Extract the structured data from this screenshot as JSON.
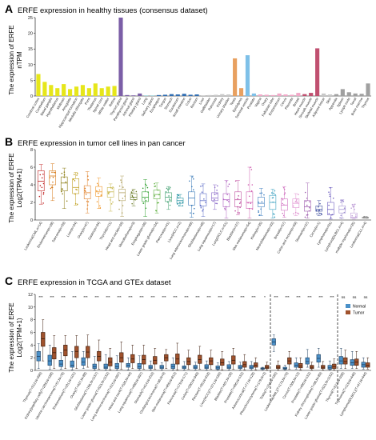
{
  "panels": {
    "A": {
      "label": "A",
      "title": "ERFE expression in healthy tissues (consensus dataset)",
      "ylabel_1": "The expression of ERFE",
      "ylabel_2": "nTPM"
    },
    "B": {
      "label": "B",
      "title": "ERFE expression in tumor cell lines in pan cancer",
      "ylabel_1": "The expression of ERFE",
      "ylabel_2": "Log2(TPM+1)"
    },
    "C": {
      "label": "C",
      "title": "ERFE expression in TCGA and GTEx dataset",
      "ylabel_1": "The expression of ERFE",
      "ylabel_2": "Log2(TPM+1)"
    }
  },
  "chart_data": [
    {
      "type": "bar",
      "title": "ERFE expression in healthy tissues (consensus dataset)",
      "ylabel": "The expression of ERFE nTPM",
      "ylim": [
        0,
        25
      ],
      "yticks": [
        0,
        5,
        10,
        15,
        20,
        25
      ],
      "categories": [
        "Cerebral cortex",
        "Cerebellum",
        "Basal ganglia",
        "Hypothalamus",
        "Midbrain",
        "Amygdala",
        "Hippocampal formation",
        "Medulla oblongata",
        "Pons",
        "Thalamus",
        "Spinal cord",
        "White matter",
        "Retina",
        "Thyroid gland",
        "Parathyroid gland",
        "Adrenal gland",
        "Pituitary gland",
        "Lung",
        "Salivary gland",
        "Esophagus",
        "Tongue",
        "Stomach",
        "Duodenum",
        "Small intestine",
        "Colon",
        "Rectum",
        "Liver",
        "Gallbladder",
        "Pancreas",
        "Kidney",
        "Urinary bladder",
        "Testis",
        "Epididymis",
        "Seminal vesicle",
        "Prostate",
        "Vagina",
        "Ovary",
        "Fallopian tube",
        "Endometrium",
        "Cervix",
        "Placenta",
        "Breast",
        "Heart muscle",
        "Smooth muscle",
        "Skeletal muscle",
        "Adipose tissue",
        "Skin",
        "Appendix",
        "Spleen",
        "Lymph node",
        "Tonsil",
        "Bone marrow",
        "Thymus"
      ],
      "values": [
        7.0,
        4.5,
        3.5,
        2.5,
        3.8,
        2.2,
        3.0,
        3.5,
        2.5,
        4.0,
        2.5,
        3.0,
        3.2,
        25.0,
        0.3,
        0.2,
        0.8,
        0.2,
        0.2,
        0.3,
        0.4,
        0.6,
        0.5,
        0.7,
        0.4,
        0.5,
        0.2,
        0.3,
        0.4,
        0.6,
        0.5,
        12.0,
        2.5,
        13.0,
        0.8,
        0.5,
        0.4,
        0.3,
        0.8,
        0.5,
        0.4,
        1.0,
        0.6,
        1.0,
        15.2,
        0.8,
        0.5,
        0.6,
        2.2,
        1.2,
        0.8,
        0.7,
        4.0
      ],
      "colors": [
        "#e6e61a",
        "#e6e61a",
        "#e6e61a",
        "#e6e61a",
        "#e6e61a",
        "#e6e61a",
        "#e6e61a",
        "#e6e61a",
        "#e6e61a",
        "#e6e61a",
        "#e6e61a",
        "#e6e61a",
        "#e6e61a",
        "#7b5ea7",
        "#7b5ea7",
        "#7b5ea7",
        "#7b5ea7",
        "#9ad0d6",
        "#9ad0d6",
        "#2f6db3",
        "#2f6db3",
        "#2f6db3",
        "#2f6db3",
        "#2f6db3",
        "#2f6db3",
        "#2f6db3",
        "#c8c8c8",
        "#c8c8c8",
        "#c8c8c8",
        "#c8c8c8",
        "#c8c8c8",
        "#e8a060",
        "#e8a060",
        "#7ec0e8",
        "#7ec0e8",
        "#f2a8c8",
        "#f2a8c8",
        "#f2a8c8",
        "#f2a8c8",
        "#f2a8c8",
        "#f2a8c8",
        "#f2a8c8",
        "#c05070",
        "#c05070",
        "#c05070",
        "#c8c8c8",
        "#c8c8c8",
        "#a0a0a0",
        "#a0a0a0",
        "#a0a0a0",
        "#a0a0a0",
        "#a0a0a0",
        "#a0a0a0"
      ]
    },
    {
      "type": "box",
      "title": "ERFE expression in tumor cell lines in pan cancer",
      "ylabel": "The expression of ERFE Log2(TPM+1)",
      "ylim": [
        0,
        8
      ],
      "yticks": [
        0,
        2,
        4,
        6,
        8
      ],
      "categories": [
        "Leukemia(CML,n=14)",
        "Endometrium(n=28)",
        "Sarcoma(n=39)",
        "Liver(n=24)",
        "Ovary(n=47)",
        "Gastric(n=34)",
        "Thyroid(n=11)",
        "Head and neck(n=33)",
        "Mesothelioma(n=9)",
        "Esophagus(n=26)",
        "Lower grade glioma(n=24)",
        "Pancreas(n=41)",
        "Liver(HCC,n=2)",
        "Lung adenocarcinoma(n=69)",
        "Glioblastoma(n=48)",
        "Lung squamous(n=17)",
        "Lung(SCLC,n=51)",
        "Bladder(n=27)",
        "Skin melanoma(n=54)",
        "Kidney(n=35)",
        "Neuroblastoma(n=33)",
        "Breast(n=57)",
        "Colon and rectum(n=59)",
        "Stomach(n=37)",
        "Cervix(n=1)",
        "Lymphoma(n=91)",
        "Lymphoid(DLBCL,n=4)",
        "multiple myeloma(n=35)",
        "Leukemia(CLL,n=4)"
      ],
      "series": [
        {
          "stats": [
            [
              1.8,
              3.3,
              4.4,
              5.6,
              6.3
            ],
            [
              2.2,
              4.0,
              5.0,
              5.6,
              6.4
            ],
            [
              1.3,
              3.3,
              4.2,
              4.9,
              5.9
            ],
            [
              1.7,
              3.0,
              3.7,
              4.7,
              5.4
            ],
            [
              0.8,
              2.4,
              3.1,
              3.9,
              5.5
            ],
            [
              1.3,
              2.7,
              3.2,
              3.8,
              4.8
            ],
            [
              1.0,
              2.6,
              3.2,
              3.7,
              4.1
            ],
            [
              0.4,
              2.2,
              3.1,
              3.5,
              5.0
            ],
            [
              1.6,
              2.3,
              2.6,
              3.0,
              3.5
            ],
            [
              0.4,
              2.1,
              2.6,
              3.2,
              4.6
            ],
            [
              0.8,
              2.4,
              2.9,
              3.4,
              4.2
            ],
            [
              1.2,
              2.1,
              2.6,
              3.1,
              3.8
            ],
            [
              1.6,
              1.9,
              2.2,
              2.5,
              2.9
            ],
            [
              0.3,
              1.7,
              2.5,
              3.2,
              5.0
            ],
            [
              0.4,
              1.6,
              2.2,
              3.0,
              4.1
            ],
            [
              1.2,
              2.2,
              2.5,
              3.1,
              4.0
            ],
            [
              0.2,
              1.5,
              2.3,
              3.0,
              4.5
            ],
            [
              0.6,
              1.5,
              2.3,
              3.2,
              4.5
            ],
            [
              0.2,
              1.3,
              2.0,
              3.2,
              6.0
            ],
            [
              0.5,
              1.5,
              1.9,
              2.6,
              3.6
            ],
            [
              0.2,
              1.2,
              2.0,
              2.8,
              3.5
            ],
            [
              0.3,
              1.1,
              1.7,
              2.4,
              3.8
            ],
            [
              0.5,
              1.4,
              1.9,
              2.4,
              3.0
            ],
            [
              0.2,
              1.0,
              1.5,
              2.2,
              4.2
            ],
            [
              0.5,
              1.0,
              1.2,
              1.6,
              2.2
            ],
            [
              0.1,
              0.6,
              1.2,
              2.0,
              3.7
            ],
            [
              0.2,
              0.8,
              1.2,
              1.6,
              2.3
            ],
            [
              0.1,
              0.2,
              0.3,
              0.8,
              1.8
            ],
            [
              0.2,
              0.2,
              0.3,
              0.3,
              0.4
            ]
          ]
        }
      ],
      "colors": [
        "#c02020",
        "#d67a1a",
        "#8a7a10",
        "#c0a020",
        "#e0802a",
        "#f09a30",
        "#c8b850",
        "#b0a060",
        "#708030",
        "#30a030",
        "#60b040",
        "#40a070",
        "#2090a0",
        "#3a7ab8",
        "#6070c8",
        "#8a6ac8",
        "#b060c0",
        "#c050a0",
        "#d060b0",
        "#4080c0",
        "#3aa0c0",
        "#d070c0",
        "#e090d0",
        "#a060b0",
        "#4050a0",
        "#7060c0",
        "#a090d0",
        "#c0a0d8",
        "#909090"
      ]
    },
    {
      "type": "box",
      "title": "ERFE expression in TCGA and GTEx dataset",
      "ylabel": "The expression of ERFE Log2(TPM+1)",
      "ylim": [
        0,
        12
      ],
      "yticks": [
        0,
        2,
        4,
        6,
        8,
        10,
        12
      ],
      "legend": [
        "Normal",
        "Tumor"
      ],
      "legend_position": "top-right",
      "categories": [
        "Thymus(T=512,N=390)",
        "Kidney(papillary cell)(T=289,N=168)",
        "Uterine carcinosarcoma(T=57,N=78)",
        "Endometrium(T=181,N=101)",
        "Ovary(T=427,N=88)",
        "Glioblastoma(T=166,N=1157)",
        "Lower grade glioma(T=523,N=1152)",
        "Lung adenocarcinoma(T=515,N=397)",
        "Head and neck(T=520,N=44)",
        "Lung squamous(T=498,N=397)",
        "Stomach(T=414,N=210)",
        "Cholangiocarcinoma(T=36,N=9)",
        "Skin melanoma(T=469,N=813)",
        "Pancreas(T=179,N=171)",
        "Colon(T=290,N=349)",
        "Rectum(T=95,N=318)",
        "Liver(HCC)(T=371,N=160)",
        "Bladder(T=407,N=28)",
        "Prostate(T=496,N=152)",
        "Adrenocortical(T=77,N=128)",
        "Pheochromocytoma(T=179,N=3)",
        "Testis(T=154,N=165)",
        "Leukemia(AML)(T=173,N=70)",
        "Cervix(T=306,N=13)",
        "Prostate(T=496,N=152)",
        "Kidney chromophobe(T=66,N=89)",
        "Lower grade glioma(T=523,N=1152)",
        "Thyroid(T=512,N=338)",
        "Thymoma(T=119,N=446)",
        "Lymphoma(DLBCL)(T=47,N=444)"
      ],
      "significance": [
        "***",
        "***",
        "***",
        "***",
        "***",
        "***",
        "***",
        "***",
        "***",
        "***",
        "***",
        "***",
        "***",
        "***",
        "***",
        "***",
        "***",
        "***",
        "***",
        "***",
        "*",
        "***",
        "***",
        "***",
        "***",
        "***",
        "***",
        "ns",
        "ns",
        "ns"
      ],
      "series": [
        {
          "name": "Normal",
          "stats": [
            [
              0.3,
              1.5,
              2.2,
              3.0,
              4.2
            ],
            [
              0.2,
              0.8,
              1.5,
              2.4,
              4.0
            ],
            [
              0.2,
              0.6,
              1.0,
              1.6,
              2.8
            ],
            [
              0.1,
              0.5,
              0.8,
              1.5,
              3.0
            ],
            [
              0.3,
              0.8,
              1.3,
              2.0,
              3.0
            ],
            [
              0.1,
              0.3,
              0.6,
              1.0,
              2.2
            ],
            [
              0.1,
              0.3,
              0.5,
              1.0,
              2.5
            ],
            [
              0.1,
              0.3,
              0.6,
              1.1,
              2.3
            ],
            [
              0.1,
              0.5,
              0.8,
              1.1,
              2.0
            ],
            [
              0.1,
              0.3,
              0.6,
              1.1,
              2.3
            ],
            [
              0.1,
              0.3,
              0.5,
              0.8,
              1.5
            ],
            [
              0.1,
              0.3,
              0.5,
              0.8,
              1.2
            ],
            [
              0.1,
              0.3,
              0.6,
              1.0,
              2.0
            ],
            [
              0.1,
              0.3,
              0.5,
              0.7,
              1.4
            ],
            [
              0.1,
              0.3,
              0.5,
              0.8,
              1.3
            ],
            [
              0.1,
              0.3,
              0.5,
              0.9,
              1.5
            ],
            [
              0.1,
              0.2,
              0.4,
              0.7,
              1.2
            ],
            [
              0.1,
              0.3,
              0.5,
              0.9,
              1.4
            ],
            [
              0.1,
              0.3,
              0.5,
              0.8,
              1.3
            ],
            [
              0.1,
              0.3,
              0.5,
              0.8,
              1.4
            ],
            [
              0.1,
              0.2,
              0.3,
              0.4,
              0.5
            ],
            [
              3.0,
              4.0,
              4.5,
              5.0,
              5.6
            ],
            [
              0.1,
              0.2,
              0.3,
              0.5,
              0.8
            ],
            [
              0.2,
              0.5,
              0.8,
              1.2,
              2.0
            ],
            [
              0.5,
              1.0,
              1.4,
              2.0,
              3.3
            ],
            [
              0.5,
              1.3,
              1.9,
              2.5,
              3.5
            ],
            [
              0.1,
              0.2,
              0.4,
              0.8,
              1.5
            ],
            [
              0.3,
              1.0,
              1.5,
              2.2,
              3.5
            ],
            [
              0.3,
              0.8,
              1.2,
              1.7,
              3.0
            ],
            [
              0.2,
              0.5,
              0.9,
              1.3,
              2.0
            ]
          ]
        },
        {
          "name": "Tumor",
          "stats": [
            [
              1.5,
              3.8,
              5.0,
              6.0,
              8.0
            ],
            [
              0.3,
              1.8,
              2.8,
              3.6,
              5.5
            ],
            [
              0.3,
              2.3,
              3.2,
              4.0,
              5.5
            ],
            [
              0.3,
              2.0,
              3.0,
              3.8,
              5.5
            ],
            [
              0.5,
              2.0,
              2.9,
              3.8,
              5.6
            ],
            [
              0.2,
              1.5,
              2.2,
              3.0,
              4.8
            ],
            [
              0.1,
              0.7,
              1.3,
              2.0,
              3.5
            ],
            [
              0.2,
              1.3,
              2.0,
              2.8,
              4.5
            ],
            [
              0.3,
              1.2,
              1.8,
              2.5,
              4.0
            ],
            [
              0.2,
              1.0,
              1.7,
              2.4,
              4.0
            ],
            [
              0.2,
              1.0,
              1.6,
              2.2,
              3.5
            ],
            [
              0.3,
              1.5,
              2.0,
              2.5,
              3.3
            ],
            [
              0.1,
              1.0,
              1.8,
              2.6,
              4.3
            ],
            [
              0.2,
              0.9,
              1.4,
              2.0,
              3.2
            ],
            [
              0.2,
              1.1,
              1.7,
              2.4,
              3.8
            ],
            [
              0.2,
              0.9,
              1.5,
              2.0,
              3.2
            ],
            [
              0.1,
              0.8,
              1.2,
              1.8,
              3.0
            ],
            [
              0.2,
              1.0,
              1.6,
              2.3,
              3.5
            ],
            [
              0.1,
              0.5,
              0.9,
              1.4,
              2.5
            ],
            [
              0.1,
              0.5,
              0.8,
              1.2,
              2.0
            ],
            [
              0.1,
              0.3,
              0.5,
              0.8,
              1.3
            ],
            [
              0.1,
              0.3,
              0.5,
              0.8,
              1.5
            ],
            [
              0.2,
              1.0,
              1.5,
              2.0,
              3.0
            ],
            [
              0.1,
              0.4,
              0.7,
              1.1,
              2.0
            ],
            [
              0.1,
              0.3,
              0.5,
              0.8,
              1.3
            ],
            [
              0.1,
              0.3,
              0.5,
              0.8,
              1.4
            ],
            [
              0.1,
              0.3,
              0.6,
              1.0,
              1.8
            ],
            [
              0.3,
              1.0,
              1.4,
              2.0,
              3.2
            ],
            [
              0.3,
              0.8,
              1.3,
              1.8,
              3.0
            ],
            [
              0.2,
              0.5,
              0.8,
              1.2,
              2.0
            ]
          ]
        }
      ],
      "colors": {
        "Normal": "#4a90c8",
        "Tumor": "#a0522d"
      },
      "dividers_after": [
        20,
        26
      ]
    }
  ]
}
